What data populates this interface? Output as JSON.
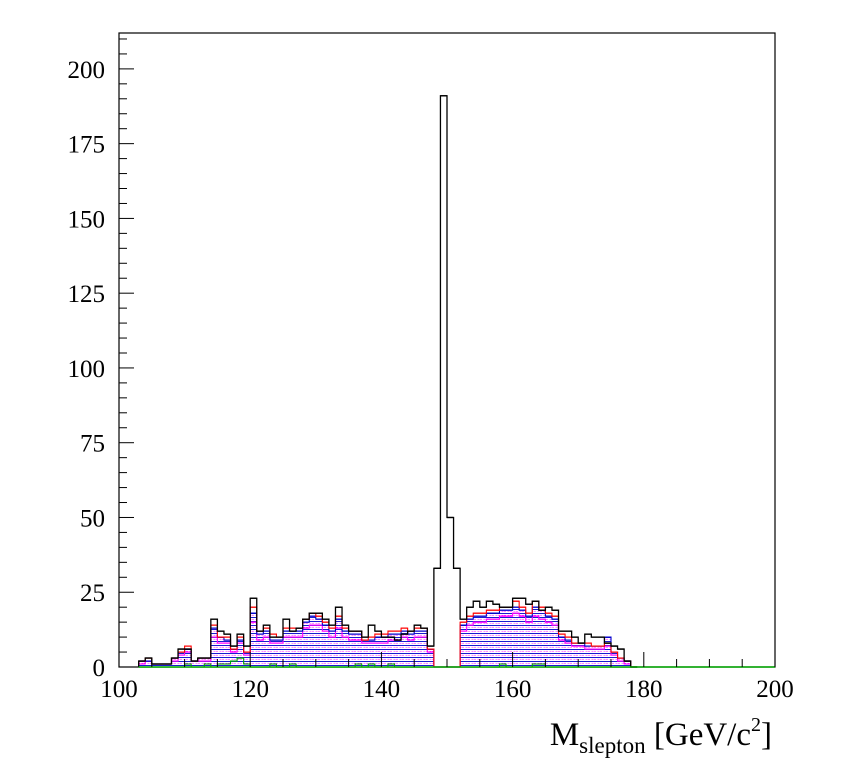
{
  "chart_data": {
    "type": "bar",
    "title": "",
    "xlabel": {
      "main": "M",
      "subscript": "slepton",
      "unit_open": " [GeV/c",
      "superscript": "2",
      "unit_close": "]"
    },
    "ylabel": "",
    "xlim": [
      100,
      200
    ],
    "ylim": [
      0,
      212
    ],
    "bin_width": 1,
    "x_start": 103,
    "xticks": [
      "100",
      "120",
      "140",
      "160",
      "180",
      "200"
    ],
    "yticks": [
      "0",
      "25",
      "50",
      "75",
      "100",
      "125",
      "150",
      "175",
      "200"
    ],
    "grid": false,
    "legend": "none",
    "colors": {
      "data": "#000000",
      "red": "#ff0000",
      "magenta": "#ff00ff",
      "blue": "#0000cc",
      "green": "#00aa00"
    },
    "series": [
      {
        "values": [
          2,
          3,
          1,
          1,
          1,
          3,
          6,
          6,
          2,
          3,
          3,
          16,
          12,
          11,
          7,
          11,
          7,
          23,
          12,
          14,
          10,
          10,
          16,
          12,
          13,
          16,
          18,
          18,
          16,
          14,
          20,
          14,
          12,
          12,
          10,
          14,
          12,
          10,
          10,
          9,
          11,
          12,
          14,
          13,
          7,
          33,
          191,
          50,
          33,
          16,
          20,
          22,
          20,
          22,
          21,
          20,
          20,
          23,
          23,
          21,
          22,
          19,
          20,
          19,
          12,
          12,
          10,
          8,
          11,
          10,
          10,
          8,
          7,
          6,
          2,
          0
        ]
      },
      {
        "values": [
          2,
          3,
          1,
          1,
          1,
          3,
          5,
          7,
          2,
          3,
          3,
          14,
          10,
          10,
          6,
          10,
          5,
          20,
          12,
          13,
          11,
          10,
          13,
          13,
          13,
          16,
          18,
          17,
          15,
          13,
          17,
          13,
          12,
          12,
          9,
          10,
          11,
          11,
          12,
          12,
          13,
          12,
          13,
          13,
          6,
          0,
          0,
          0,
          0,
          15,
          17,
          18,
          18,
          19,
          19,
          20,
          20,
          22,
          20,
          18,
          22,
          20,
          18,
          17,
          11,
          10,
          8,
          8,
          8,
          7,
          7,
          8,
          5,
          3,
          2,
          0
        ]
      },
      {
        "values": [
          2,
          2,
          1,
          1,
          1,
          3,
          5,
          6,
          2,
          3,
          3,
          13,
          10,
          9,
          6,
          9,
          5,
          18,
          11,
          12,
          9,
          9,
          12,
          12,
          12,
          15,
          17,
          16,
          14,
          12,
          16,
          12,
          11,
          11,
          9,
          9,
          10,
          10,
          11,
          11,
          12,
          11,
          12,
          12,
          6,
          0,
          0,
          0,
          0,
          14,
          16,
          17,
          17,
          18,
          18,
          19,
          19,
          20,
          19,
          17,
          20,
          19,
          17,
          16,
          10,
          9,
          8,
          8,
          7,
          7,
          7,
          10,
          5,
          3,
          2,
          0
        ]
      },
      {
        "values": [
          1,
          2,
          1,
          1,
          1,
          2,
          4,
          5,
          2,
          2,
          2,
          10,
          8,
          8,
          5,
          8,
          4,
          15,
          9,
          10,
          8,
          8,
          10,
          10,
          10,
          13,
          14,
          14,
          12,
          10,
          13,
          10,
          9,
          9,
          8,
          8,
          8,
          8,
          9,
          9,
          10,
          9,
          10,
          10,
          5,
          0,
          0,
          0,
          0,
          12,
          14,
          15,
          15,
          16,
          16,
          17,
          17,
          18,
          17,
          15,
          17,
          16,
          15,
          14,
          9,
          8,
          7,
          7,
          6,
          6,
          6,
          7,
          4,
          2,
          1,
          0
        ]
      },
      {
        "values": [
          0,
          0,
          0,
          0,
          0,
          0,
          0,
          1,
          0,
          0,
          1,
          0,
          1,
          1,
          2,
          3,
          1,
          0,
          0,
          0,
          1,
          0,
          0,
          1,
          0,
          0,
          0,
          0,
          0,
          0,
          0,
          0,
          0,
          1,
          0,
          1,
          0,
          0,
          1,
          0,
          0,
          0,
          0,
          0,
          0,
          0,
          0,
          0,
          0,
          0,
          0,
          0,
          0,
          0,
          0,
          1,
          0,
          0,
          0,
          0,
          1,
          1,
          0,
          0,
          0,
          0,
          0,
          0,
          0,
          0,
          0,
          0,
          0,
          0,
          0,
          0
        ]
      }
    ]
  }
}
